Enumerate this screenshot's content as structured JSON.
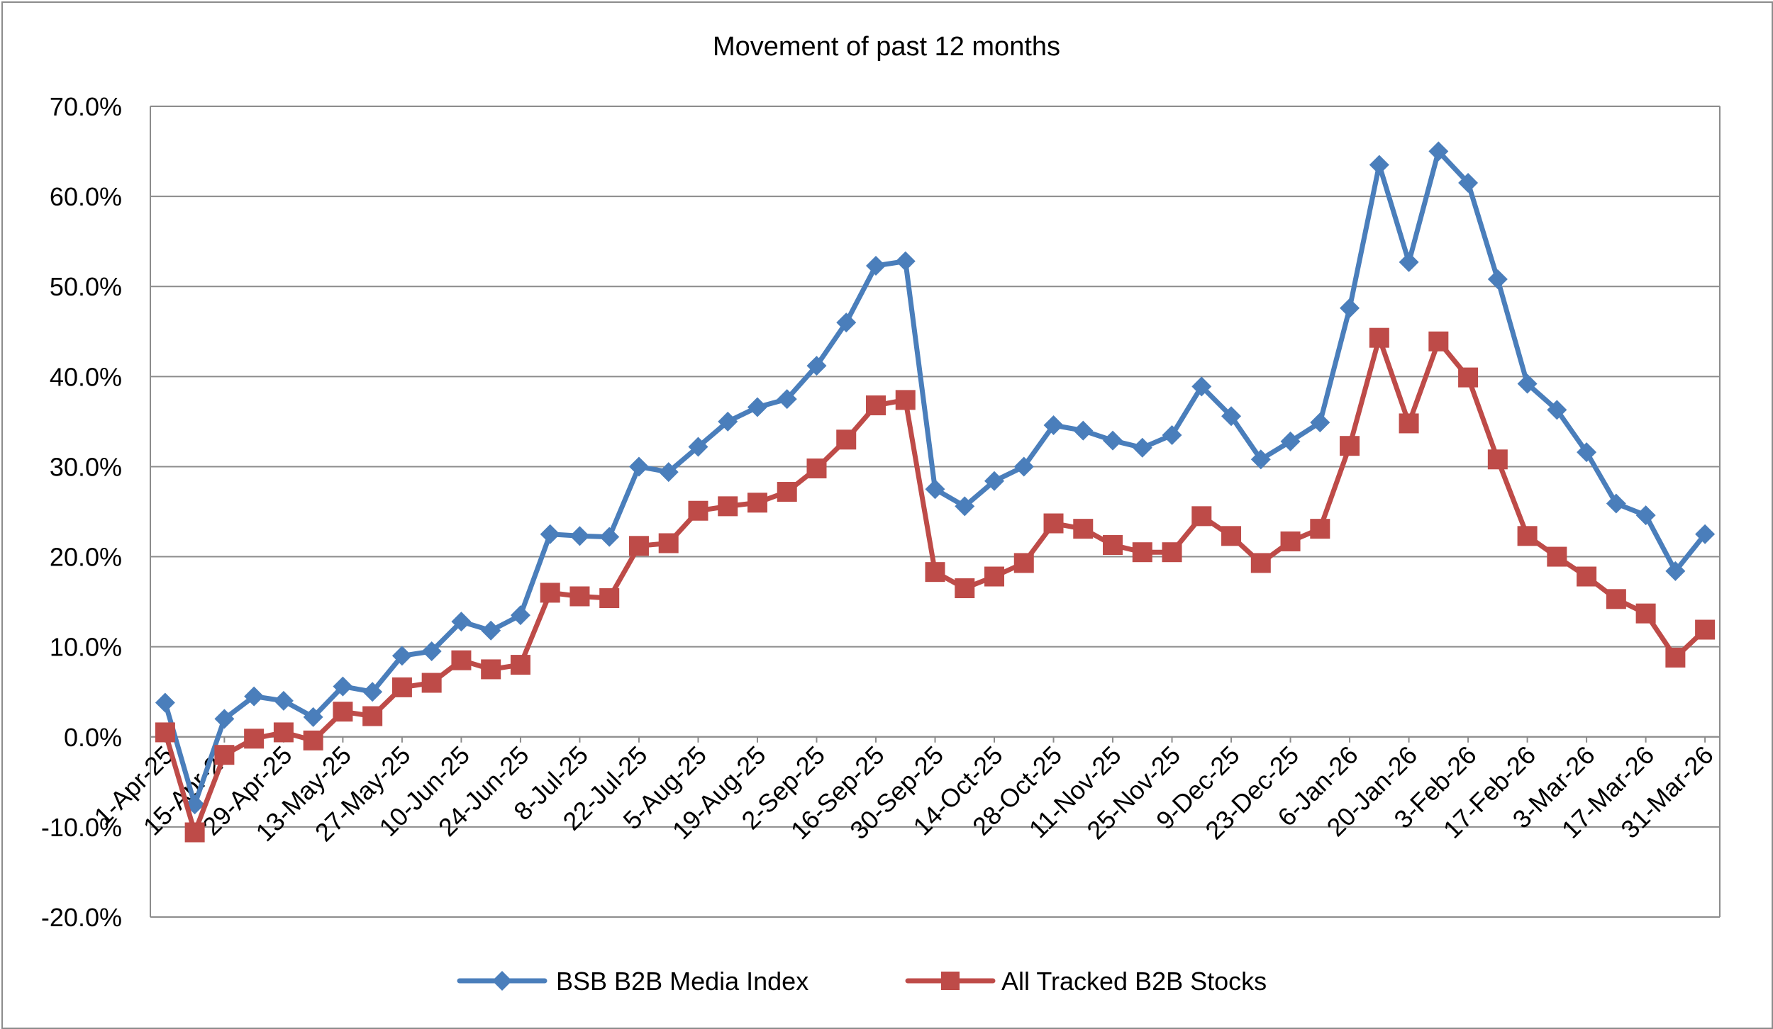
{
  "chart_data": {
    "type": "line",
    "title": "Movement of past 12 months",
    "xlabel": "",
    "ylabel": "",
    "ylim": [
      -20,
      70
    ],
    "ytick_step": 10,
    "ytick_labels": [
      "-20.0%",
      "-10.0%",
      "0.0%",
      "10.0%",
      "20.0%",
      "30.0%",
      "40.0%",
      "50.0%",
      "60.0%",
      "70.0%"
    ],
    "grid": true,
    "legend_position": "bottom",
    "xtick_labels": [
      "1-Apr-25",
      "15-Apr-25",
      "29-Apr-25",
      "13-May-25",
      "27-May-25",
      "10-Jun-25",
      "24-Jun-25",
      "8-Jul-25",
      "22-Jul-25",
      "5-Aug-25",
      "19-Aug-25",
      "2-Sep-25",
      "16-Sep-25",
      "30-Sep-25",
      "14-Oct-25",
      "28-Oct-25",
      "11-Nov-25",
      "25-Nov-25",
      "9-Dec-25",
      "23-Dec-25",
      "6-Jan-26",
      "20-Jan-26",
      "3-Feb-26",
      "17-Feb-26",
      "3-Mar-26",
      "17-Mar-26",
      "31-Mar-26"
    ],
    "series": [
      {
        "name": "BSB B2B Media Index",
        "color": "#4A7EBB",
        "marker": "diamond",
        "values": [
          3.8,
          -7.5,
          2.0,
          4.5,
          4.0,
          2.2,
          5.6,
          5.0,
          9.0,
          9.5,
          12.8,
          11.8,
          13.5,
          22.5,
          22.3,
          22.2,
          30.0,
          29.4,
          32.2,
          35.0,
          36.6,
          37.5,
          41.2,
          46.0,
          52.3,
          52.8,
          27.5,
          25.6,
          28.4,
          30.0,
          34.6,
          34.0,
          32.9,
          32.1,
          33.5,
          38.9,
          35.6,
          30.8,
          32.8,
          34.9,
          47.6,
          63.5,
          52.7,
          65.0,
          61.5,
          50.8,
          39.2,
          36.3,
          31.6,
          25.9,
          24.6,
          18.4,
          22.5
        ]
      },
      {
        "name": "All Tracked B2B Stocks",
        "color": "#BE4B48",
        "marker": "square",
        "values": [
          0.5,
          -10.6,
          -2.0,
          -0.2,
          0.5,
          -0.4,
          2.8,
          2.3,
          5.5,
          6.0,
          8.5,
          7.5,
          8.0,
          16.0,
          15.6,
          15.4,
          21.2,
          21.5,
          25.1,
          25.6,
          26.0,
          27.2,
          29.8,
          33.0,
          36.8,
          37.4,
          18.3,
          16.5,
          17.8,
          19.3,
          23.7,
          23.1,
          21.3,
          20.5,
          20.5,
          24.5,
          22.3,
          19.3,
          21.7,
          23.1,
          32.3,
          44.3,
          34.8,
          43.9,
          39.9,
          30.8,
          22.3,
          20.0,
          17.8,
          15.3,
          13.7,
          8.8,
          11.9
        ]
      }
    ]
  }
}
